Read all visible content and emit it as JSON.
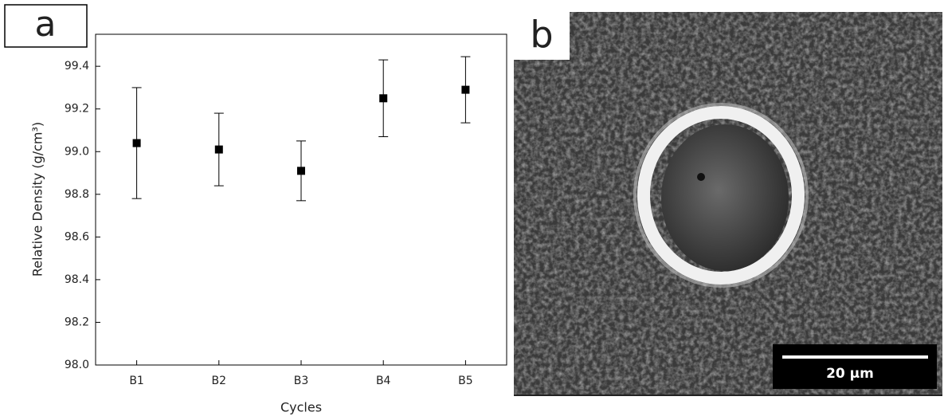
{
  "chart_data": {
    "type": "scatter",
    "panel_label": "a",
    "categories": [
      "B1",
      "B2",
      "B3",
      "B4",
      "B5"
    ],
    "values": [
      99.04,
      99.01,
      98.91,
      99.25,
      99.29
    ],
    "errors": [
      0.26,
      0.17,
      0.14,
      0.18,
      0.155
    ],
    "color": "#000000",
    "x_label": "Cycles",
    "y_label": "Relative Density (g/cm³)",
    "ylim": [
      98.0,
      99.55
    ],
    "yticks": [
      {
        "value": 98.0,
        "label": "98.0"
      },
      98.2,
      98.4,
      98.6,
      98.8,
      {
        "value": 99.0,
        "label": "99.0"
      },
      99.2,
      99.4
    ]
  },
  "panel_b": {
    "label": "b",
    "scale_bar": "20 µm"
  }
}
